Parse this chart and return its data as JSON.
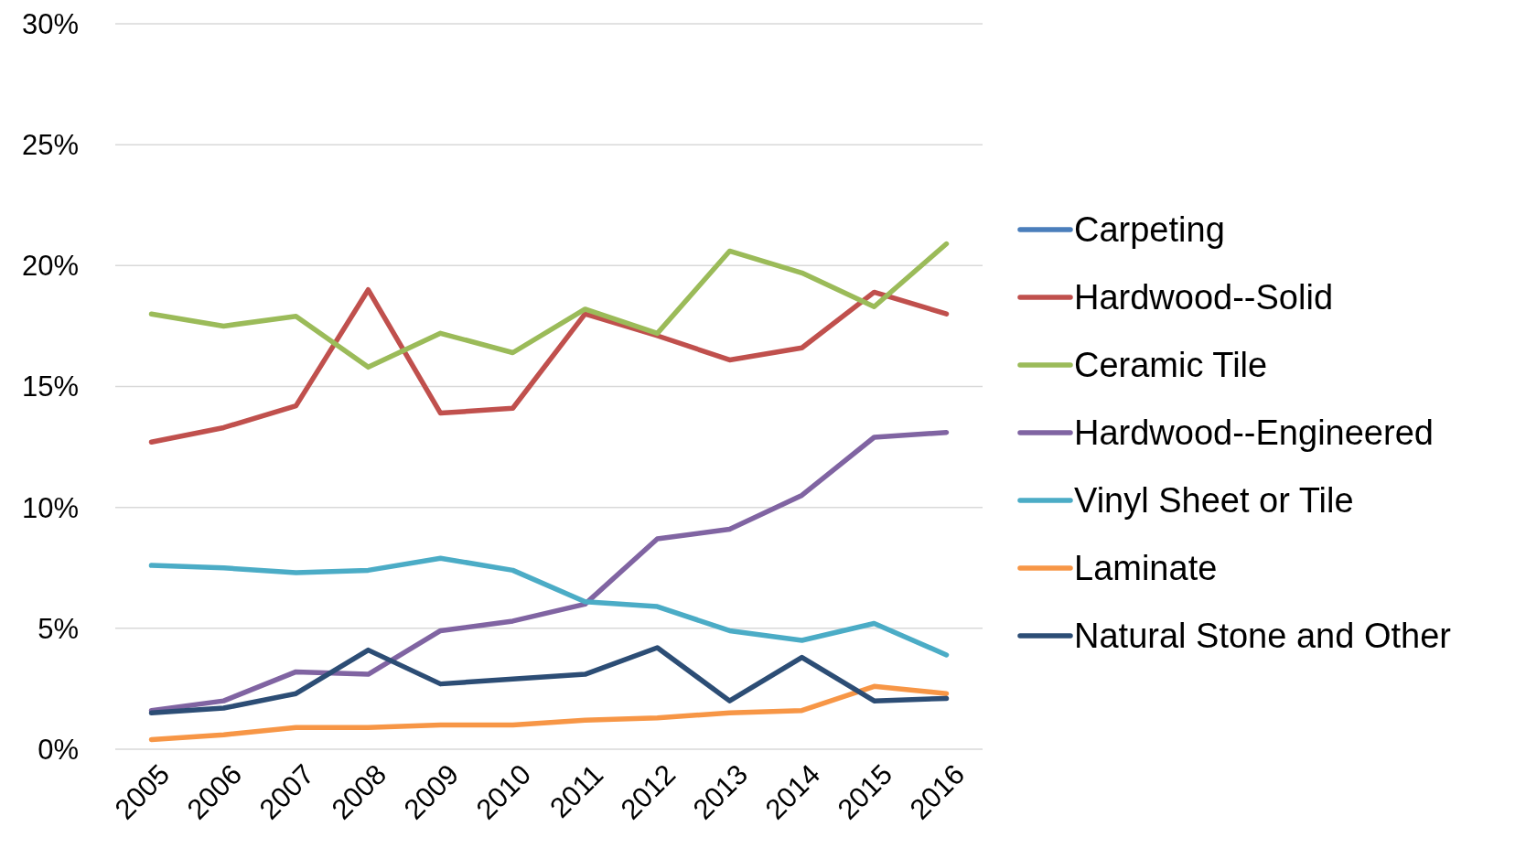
{
  "chart_data": {
    "type": "line",
    "categories": [
      "2005",
      "2006",
      "2007",
      "2008",
      "2009",
      "2010",
      "2011",
      "2012",
      "2013",
      "2014",
      "2015",
      "2016"
    ],
    "series": [
      {
        "name": "Carpeting",
        "color": "#4a7ebb",
        "values": [
          null,
          null,
          null,
          null,
          null,
          null,
          null,
          null,
          null,
          null,
          null,
          null
        ]
      },
      {
        "name": "Hardwood--Solid",
        "color": "#c0504d",
        "values": [
          12.7,
          13.3,
          14.2,
          19.0,
          13.9,
          14.1,
          18.0,
          17.1,
          16.1,
          16.6,
          18.9,
          18.0
        ]
      },
      {
        "name": "Ceramic Tile",
        "color": "#9bbb59",
        "values": [
          18.0,
          17.5,
          17.9,
          15.8,
          17.2,
          16.4,
          18.2,
          17.2,
          20.6,
          19.7,
          18.3,
          20.9
        ]
      },
      {
        "name": "Hardwood--Engineered",
        "color": "#8064a2",
        "values": [
          1.6,
          2.0,
          3.2,
          3.1,
          4.9,
          5.3,
          6.0,
          8.7,
          9.1,
          10.5,
          12.9,
          13.1
        ]
      },
      {
        "name": "Vinyl Sheet or Tile",
        "color": "#4bacc6",
        "values": [
          7.6,
          7.5,
          7.3,
          7.4,
          7.9,
          7.4,
          6.1,
          5.9,
          4.9,
          4.5,
          5.2,
          3.9
        ]
      },
      {
        "name": "Laminate",
        "color": "#f79646",
        "values": [
          0.4,
          0.6,
          0.9,
          0.9,
          1.0,
          1.0,
          1.2,
          1.3,
          1.5,
          1.6,
          2.6,
          2.3
        ]
      },
      {
        "name": "Natural Stone and Other",
        "color": "#2c4d75",
        "values": [
          1.5,
          1.7,
          2.3,
          4.1,
          2.7,
          2.9,
          3.1,
          4.2,
          2.0,
          3.8,
          2.0,
          2.1
        ]
      }
    ],
    "ylim": [
      0,
      30
    ],
    "yticks": [
      {
        "value": 0,
        "label": "0%"
      },
      {
        "value": 5,
        "label": "5%"
      },
      {
        "value": 10,
        "label": "10%"
      },
      {
        "value": 15,
        "label": "15%"
      },
      {
        "value": 20,
        "label": "20%"
      },
      {
        "value": 25,
        "label": "25%"
      },
      {
        "value": 30,
        "label": "30%"
      }
    ],
    "grid": "y",
    "legend": "right",
    "marker": "none",
    "line_style": "solid"
  }
}
